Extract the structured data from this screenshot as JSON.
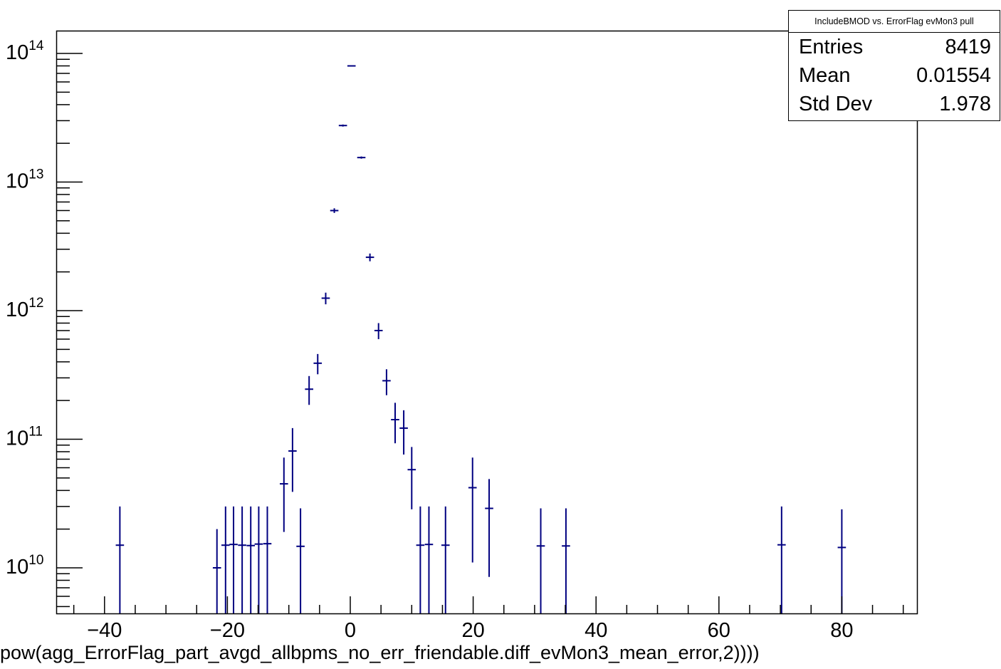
{
  "title": "IncludeBMOD vs. ErrorFlag evMon3 pull",
  "stats": {
    "title": "IncludeBMOD vs. ErrorFlag evMon3 pull",
    "entries_label": "Entries",
    "entries_value": "8419",
    "mean_label": "Mean",
    "mean_value": "0.01554",
    "stddev_label": "Std Dev",
    "stddev_value": "1.978"
  },
  "x_title": "pow(agg_ErrorFlag_part_avgd_allbpms_no_err_friendable.diff_evMon3_mean_error,2))))",
  "colors": {
    "marker": "#000080",
    "axis": "#000000"
  },
  "chart_data": {
    "type": "scatter",
    "title": "IncludeBMOD vs. ErrorFlag evMon3 pull",
    "xlabel": "pow(agg_ErrorFlag_part_avgd_allbpms_no_err_friendable.diff_evMon3_mean_error,2))))",
    "ylabel": "",
    "xlim": [
      -48,
      92
    ],
    "ylim": [
      4400000000.0,
      150000000000000.0
    ],
    "y_log": true,
    "x_ticks": [
      -40,
      -20,
      0,
      20,
      40,
      60,
      80
    ],
    "y_tick_exponents": [
      10,
      11,
      12,
      13,
      14
    ],
    "grid": false,
    "legend": "top-right",
    "series": [
      {
        "points": [
          {
            "x": -37.5,
            "y": 15000000000.0,
            "lo": 4400000000.0,
            "hi": 30000000000.0
          },
          {
            "x": -21.7,
            "y": 10000000000.0,
            "lo": 4400000000.0,
            "hi": 20000000000.0
          },
          {
            "x": -20.3,
            "y": 15000000000.0,
            "lo": 4400000000.0,
            "hi": 30000000000.0
          },
          {
            "x": -19.0,
            "y": 15200000000.0,
            "lo": 4400000000.0,
            "hi": 30000000000.0
          },
          {
            "x": -17.6,
            "y": 15000000000.0,
            "lo": 4400000000.0,
            "hi": 30000000000.0
          },
          {
            "x": -16.2,
            "y": 14900000000.0,
            "lo": 4400000000.0,
            "hi": 30000000000.0
          },
          {
            "x": -14.9,
            "y": 15300000000.0,
            "lo": 4400000000.0,
            "hi": 30000000000.0
          },
          {
            "x": -13.5,
            "y": 15400000000.0,
            "lo": 4400000000.0,
            "hi": 30000000000.0
          },
          {
            "x": -10.8,
            "y": 45000000000.0,
            "lo": 19000000000.0,
            "hi": 72000000000.0
          },
          {
            "x": -9.4,
            "y": 81000000000.0,
            "lo": 39000000000.0,
            "hi": 122000000000.0
          },
          {
            "x": -8.1,
            "y": 14700000000.0,
            "lo": 4400000000.0,
            "hi": 29000000000.0
          },
          {
            "x": -6.7,
            "y": 245000000000.0,
            "lo": 185000000000.0,
            "hi": 310000000000.0
          },
          {
            "x": -5.3,
            "y": 390000000000.0,
            "lo": 320000000000.0,
            "hi": 460000000000.0
          },
          {
            "x": -4.0,
            "y": 1250000000000.0,
            "lo": 1120000000000.0,
            "hi": 1380000000000.0
          },
          {
            "x": -2.6,
            "y": 6000000000000.0,
            "lo": 5750000000000.0,
            "hi": 6250000000000.0
          },
          {
            "x": -1.2,
            "y": 27500000000000.0,
            "lo": 27000000000000.0,
            "hi": 28000000000000.0
          },
          {
            "x": 0.2,
            "y": 80000000000000.0,
            "lo": 79500000000000.0,
            "hi": 80500000000000.0
          },
          {
            "x": 1.8,
            "y": 15500000000000.0,
            "lo": 15200000000000.0,
            "hi": 15800000000000.0
          },
          {
            "x": 3.2,
            "y": 2600000000000.0,
            "lo": 2420000000000.0,
            "hi": 2780000000000.0
          },
          {
            "x": 4.6,
            "y": 700000000000.0,
            "lo": 600000000000.0,
            "hi": 800000000000.0
          },
          {
            "x": 5.9,
            "y": 285000000000.0,
            "lo": 220000000000.0,
            "hi": 350000000000.0
          },
          {
            "x": 7.3,
            "y": 142000000000.0,
            "lo": 93000000000.0,
            "hi": 192000000000.0
          },
          {
            "x": 8.7,
            "y": 122000000000.0,
            "lo": 76000000000.0,
            "hi": 168000000000.0
          },
          {
            "x": 10.0,
            "y": 58000000000.0,
            "lo": 28500000000.0,
            "hi": 87000000000.0
          },
          {
            "x": 11.4,
            "y": 15000000000.0,
            "lo": 4400000000.0,
            "hi": 30000000000.0
          },
          {
            "x": 12.8,
            "y": 15200000000.0,
            "lo": 4400000000.0,
            "hi": 30000000000.0
          },
          {
            "x": 15.5,
            "y": 15000000000.0,
            "lo": 4400000000.0,
            "hi": 30000000000.0
          },
          {
            "x": 19.9,
            "y": 42000000000.0,
            "lo": 11000000000.0,
            "hi": 72000000000.0
          },
          {
            "x": 22.6,
            "y": 29000000000.0,
            "lo": 8500000000.0,
            "hi": 49000000000.0
          },
          {
            "x": 31.0,
            "y": 14800000000.0,
            "lo": 4400000000.0,
            "hi": 29000000000.0
          },
          {
            "x": 35.1,
            "y": 14800000000.0,
            "lo": 4400000000.0,
            "hi": 29000000000.0
          },
          {
            "x": 70.2,
            "y": 15100000000.0,
            "lo": 4400000000.0,
            "hi": 30000000000.0
          },
          {
            "x": 80.0,
            "y": 14400000000.0,
            "lo": 4400000000.0,
            "hi": 28500000000.0
          }
        ]
      }
    ]
  }
}
